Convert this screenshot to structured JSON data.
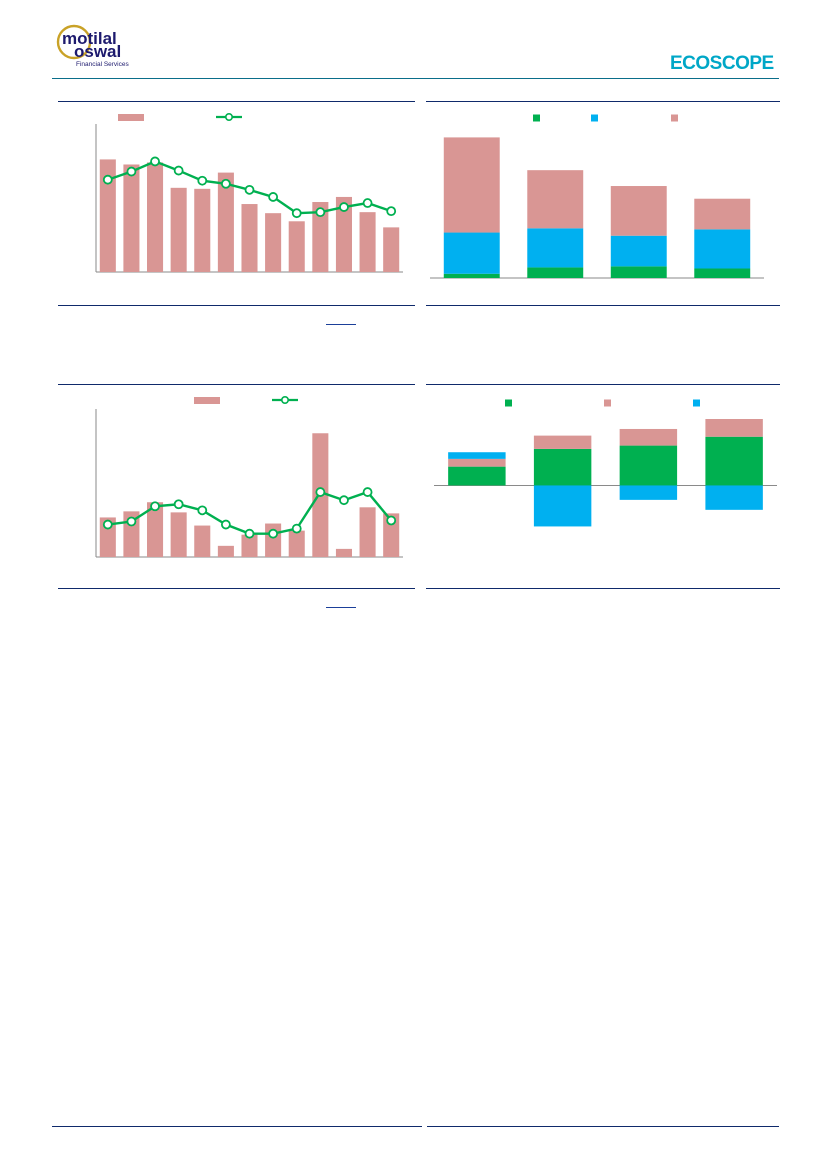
{
  "header": {
    "brand_line1": "motilal",
    "brand_line2": "oswal",
    "brand_tagline": "Financial Services",
    "report_brand": "ECOSCOPE"
  },
  "colors": {
    "pink": "#d99694",
    "green": "#00b050",
    "blue": "#00b0f0",
    "teal": "#0a6e8a",
    "navy": "#0f2a6b"
  },
  "chart_data": [
    {
      "type": "bar",
      "series": [
        {
          "kind": "bar",
          "values": [
            11.1,
            10.6,
            10.8,
            8.3,
            8.2,
            9.8,
            6.7,
            5.8,
            5.0,
            6.9,
            7.4,
            5.9,
            4.4
          ]
        },
        {
          "kind": "line",
          "values": [
            9.1,
            9.9,
            10.9,
            10.0,
            9.0,
            8.7,
            8.1,
            7.4,
            5.8,
            5.9,
            6.4,
            6.8,
            6.0
          ]
        }
      ],
      "ylim": [
        0,
        14
      ],
      "legend": "top"
    },
    {
      "type": "bar",
      "categories_count": 4,
      "series": [
        {
          "color": "green",
          "values": [
            0.4,
            1.0,
            1.1,
            0.9
          ]
        },
        {
          "color": "blue",
          "values": [
            3.9,
            3.7,
            2.9,
            3.7
          ]
        },
        {
          "color": "pink",
          "values": [
            9.0,
            5.5,
            4.7,
            2.9
          ]
        }
      ],
      "ylim": [
        0,
        14
      ],
      "legend": "top"
    },
    {
      "type": "bar",
      "series": [
        {
          "kind": "bar",
          "values": [
            3.9,
            4.5,
            5.4,
            4.4,
            3.1,
            1.1,
            2.2,
            3.3,
            2.6,
            12.2,
            0.8,
            4.9,
            4.3
          ]
        },
        {
          "kind": "line",
          "values": [
            3.2,
            3.5,
            5.0,
            5.2,
            4.6,
            3.2,
            2.3,
            2.3,
            2.8,
            6.4,
            5.6,
            6.4,
            3.6
          ]
        }
      ],
      "ylim": [
        0,
        14
      ],
      "legend": "top"
    },
    {
      "type": "bar",
      "categories_count": 4,
      "series": [
        {
          "color": "green",
          "values": [
            1.7,
            3.3,
            3.6,
            4.4
          ]
        },
        {
          "color": "pink",
          "values": [
            0.7,
            1.2,
            1.5,
            1.6
          ]
        },
        {
          "color": "blue",
          "values": [
            0.6,
            -3.7,
            -1.3,
            -2.2
          ]
        }
      ],
      "ylim": [
        -7,
        6
      ],
      "legend": "top"
    }
  ],
  "links": {
    "source1": "",
    "source2": ""
  }
}
